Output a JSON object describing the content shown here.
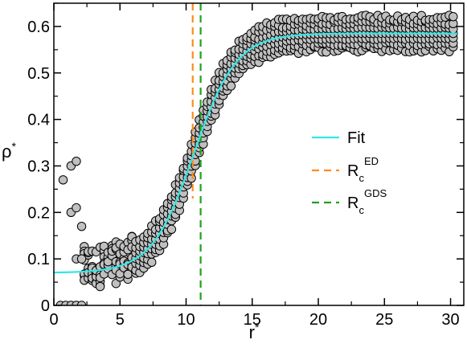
{
  "chart_data": {
    "type": "scatter",
    "xlabel": "r",
    "xlabel_sup": "*",
    "ylabel": "ρ",
    "ylabel_sup": "*",
    "xlim": [
      0,
      31
    ],
    "ylim": [
      0,
      0.65
    ],
    "xticks": [
      0,
      5,
      10,
      15,
      20,
      25,
      30
    ],
    "yticks": [
      0,
      0.1,
      0.2,
      0.3,
      0.4,
      0.5,
      0.6
    ],
    "xtick_labels": [
      "0",
      "5",
      "10",
      "15",
      "20",
      "25",
      "30"
    ],
    "ytick_labels": [
      "0",
      "0.1",
      "0.2",
      "0.3",
      "0.4",
      "0.5",
      "0.6"
    ],
    "grid": false,
    "legend_position": "center-right",
    "colors": {
      "fit": "#33e6e6",
      "rc_ed": "#ff8c1a",
      "rc_gds": "#22a022",
      "marker_fill": "#c0c0c0",
      "marker_edge": "#000000"
    },
    "scatter_series": {
      "profile": {
        "low_plateau": 0.07,
        "high_plateau": 0.585,
        "midpoint": 10.6,
        "width": 1.6
      },
      "spread": 0.04,
      "x_step": 0.3,
      "outliers": [
        {
          "x": 0.5,
          "y": 0.0
        },
        {
          "x": 0.9,
          "y": 0.0
        },
        {
          "x": 1.3,
          "y": 0.0
        },
        {
          "x": 1.7,
          "y": 0.0
        },
        {
          "x": 2.1,
          "y": 0.0
        },
        {
          "x": 0.7,
          "y": 0.27
        },
        {
          "x": 1.3,
          "y": 0.3
        },
        {
          "x": 1.7,
          "y": 0.31
        },
        {
          "x": 1.3,
          "y": 0.2
        },
        {
          "x": 1.7,
          "y": 0.21
        },
        {
          "x": 2.1,
          "y": 0.17
        },
        {
          "x": 1.7,
          "y": 0.1
        },
        {
          "x": 2.1,
          "y": 0.1
        }
      ]
    },
    "fit": {
      "name": "Fit",
      "low_plateau": 0.07,
      "high_plateau": 0.585,
      "midpoint": 10.6,
      "width": 1.6
    },
    "vlines": [
      {
        "name": "R",
        "sub": "c",
        "sup": "ED",
        "x": 10.5,
        "ymin": 0.23,
        "ymax": 0.65
      },
      {
        "name": "R",
        "sub": "c",
        "sup": "GDS",
        "x": 11.1,
        "ymin": 0.0,
        "ymax": 0.65
      }
    ]
  }
}
